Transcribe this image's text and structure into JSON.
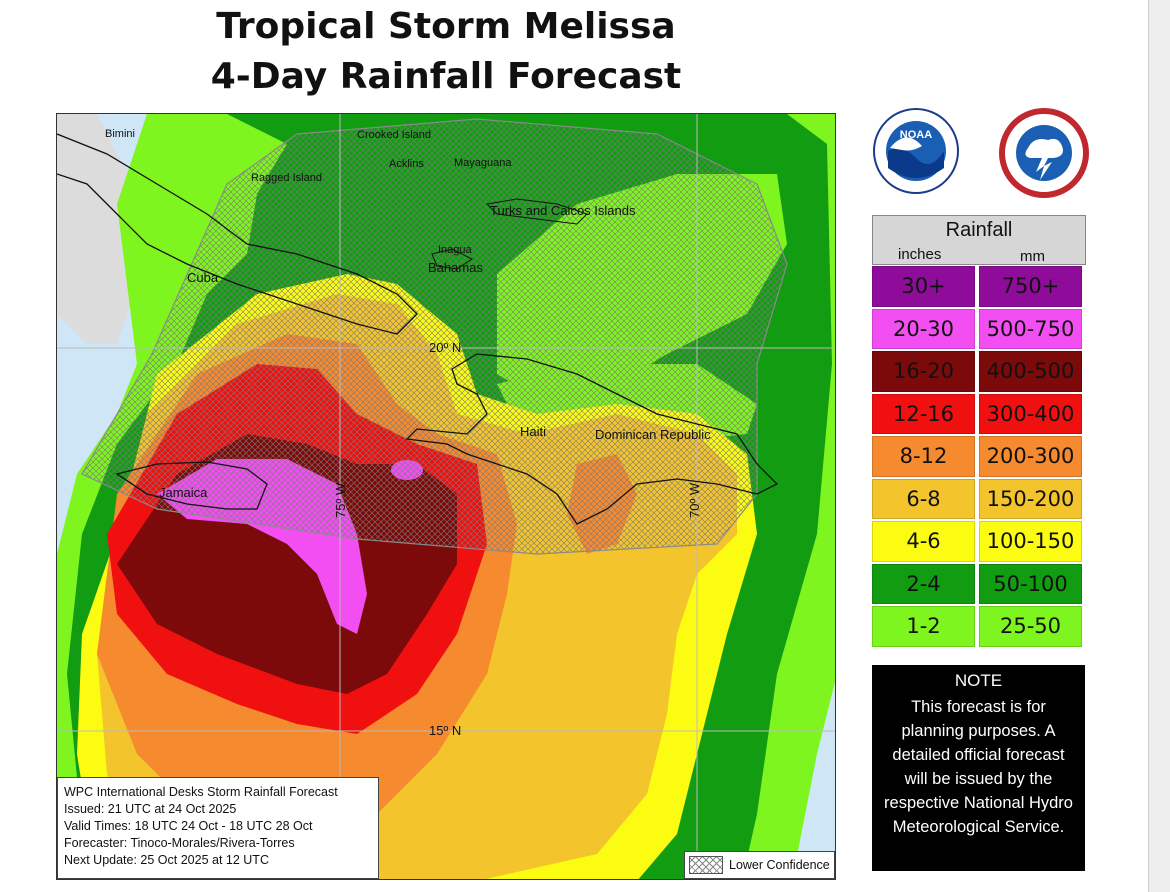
{
  "title": {
    "line1": "Tropical Storm Melissa",
    "line2": "4-Day Rainfall Forecast"
  },
  "map": {
    "places": [
      {
        "name": "Bimini"
      },
      {
        "name": "Crooked Island"
      },
      {
        "name": "Acklins"
      },
      {
        "name": "Mayaguana"
      },
      {
        "name": "Ragged Island"
      },
      {
        "name": "Turks and Caicos Islands"
      },
      {
        "name": "Inagua"
      },
      {
        "name": "Bahamas"
      },
      {
        "name": "Cuba"
      },
      {
        "name": "Haiti"
      },
      {
        "name": "Dominican Republic"
      },
      {
        "name": "Jamaica"
      }
    ],
    "grid_labels": {
      "lat20": "20º N",
      "lat15": "15º N",
      "lon75": "75º W",
      "lon70": "70º W"
    },
    "colors": {
      "ocean": "#cfe6f7",
      "land_outside": "#dcdcdc",
      "confidence_hatch": "#9a9a9a"
    }
  },
  "info": {
    "line1": "WPC International Desks Storm Rainfall Forecast",
    "line2": "Issued: 21 UTC at 24 Oct 2025",
    "line3": "Valid Times: 18 UTC 24 Oct - 18 UTC 28 Oct",
    "line4": "Forecaster: Tinoco-Morales/Rivera-Torres",
    "line5": "Next Update: 25 Oct 2025 at 12 UTC"
  },
  "lower_confidence": "Lower Confidence",
  "logos": {
    "noaa_text": "NOAA",
    "nws_icon": "nws-logo-icon",
    "noaa_icon": "noaa-logo-icon"
  },
  "legend": {
    "title": "Rainfall",
    "col_inches": "inches",
    "col_mm": "mm",
    "rows": [
      {
        "in": "30+",
        "mm": "750+",
        "color": "#8f0c9a"
      },
      {
        "in": "20-30",
        "mm": "500-750",
        "color": "#f24ef2"
      },
      {
        "in": "16-20",
        "mm": "400-500",
        "color": "#7d0a0a"
      },
      {
        "in": "12-16",
        "mm": "300-400",
        "color": "#f01010"
      },
      {
        "in": "8-12",
        "mm": "200-300",
        "color": "#f58a2e"
      },
      {
        "in": "6-8",
        "mm": "150-200",
        "color": "#f3c42c"
      },
      {
        "in": "4-6",
        "mm": "100-150",
        "color": "#fcfc12"
      },
      {
        "in": "2-4",
        "mm": "50-100",
        "color": "#129c12"
      },
      {
        "in": "1-2",
        "mm": "25-50",
        "color": "#7ef51e"
      }
    ]
  },
  "note": {
    "title": "NOTE",
    "text": "This forecast is for planning purposes. A detailed official forecast will be issued by the respective National Hydro Meteorological Service."
  }
}
